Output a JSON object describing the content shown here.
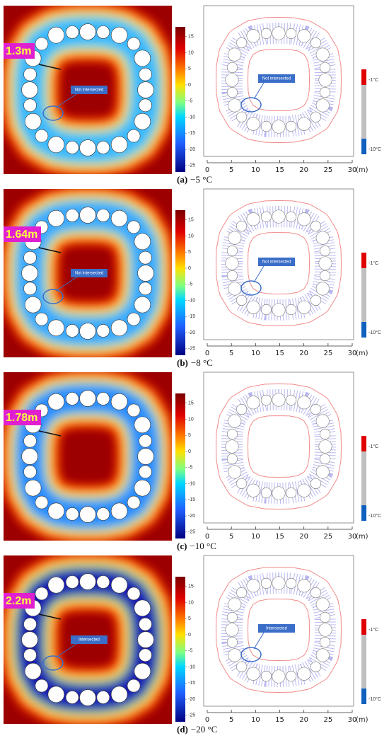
{
  "colorbar": {
    "ylim": [
      -27,
      18
    ],
    "yticks": [
      15,
      10,
      5,
      0,
      -5,
      -10,
      -15,
      -20,
      -25
    ]
  },
  "xaxis": {
    "xlim": [
      0,
      30
    ],
    "xticks": [
      0,
      5,
      10,
      15,
      20,
      25,
      30
    ],
    "unit": "(m)"
  },
  "legend": {
    "top": "-1°C",
    "bottom": "-10°C"
  },
  "panels": [
    {
      "label": "(a)",
      "caption": "−5 °C",
      "thickness": "1.3m",
      "annotation": "Not intersected",
      "color": "#3ab8ff"
    },
    {
      "label": "(b)",
      "caption": "−8 °C",
      "thickness": "1.64m",
      "annotation": "Not intersected",
      "color": "#3aa8ff"
    },
    {
      "label": "(c)",
      "caption": "−10 °C",
      "thickness": "1.78m",
      "annotation": null,
      "color": "#2a8cff"
    },
    {
      "label": "(d)",
      "caption": "−20 °C",
      "thickness": "2.2m",
      "annotation": "Intersected",
      "color": "#1a1ab0"
    }
  ]
}
